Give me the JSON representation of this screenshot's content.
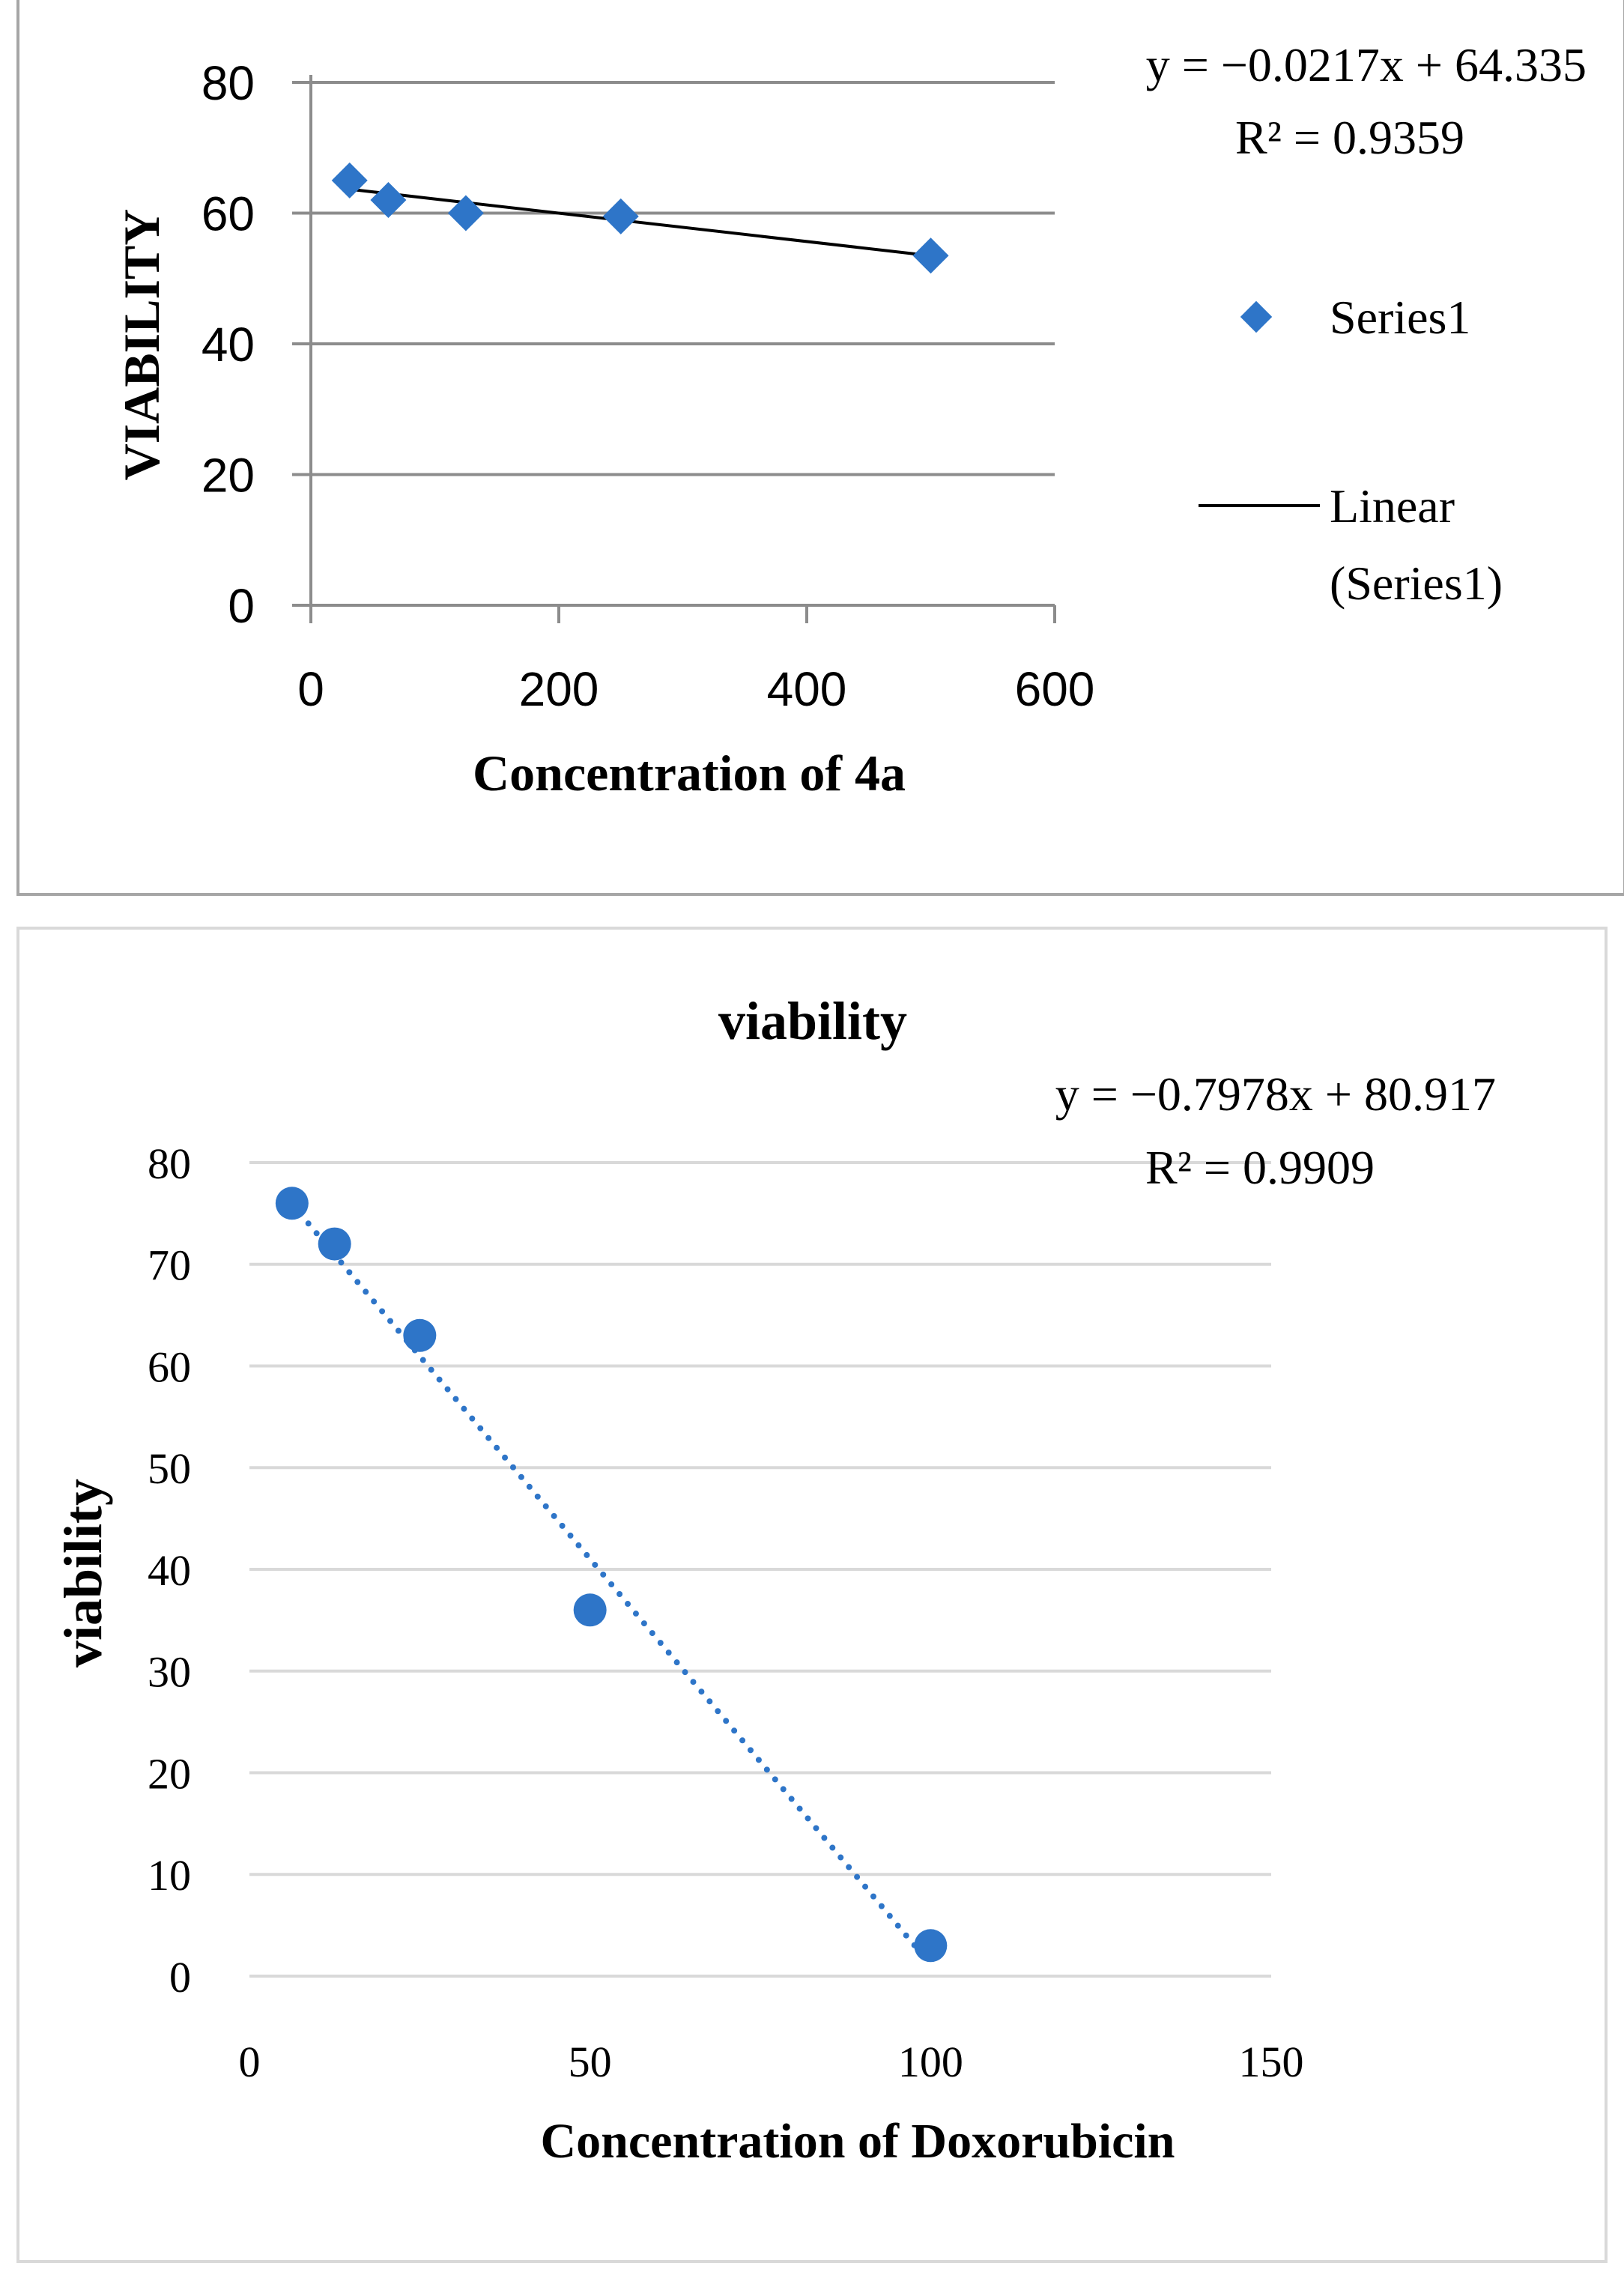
{
  "chart_data": [
    {
      "type": "scatter",
      "title": "",
      "xlabel": "Concentration of 4a",
      "ylabel": "VIABILITY",
      "xlim": [
        0,
        600
      ],
      "ylim": [
        0,
        80
      ],
      "xticks": [
        "0",
        "200",
        "400",
        "600"
      ],
      "yticks": [
        "0",
        "20",
        "40",
        "60",
        "80"
      ],
      "grid": true,
      "legend": "right",
      "series": [
        {
          "name": "Series1",
          "marker": "diamond",
          "color": "#2E75C8",
          "x": [
            31.25,
            62.5,
            125,
            250,
            500
          ],
          "y": [
            65,
            62,
            60,
            59.5,
            53.5
          ]
        }
      ],
      "trendline": {
        "name": "Linear (Series1)",
        "style": "solid",
        "color": "#000000",
        "slope": -0.0217,
        "intercept": 64.335,
        "x_range": [
          31.25,
          500
        ]
      },
      "legend_entries": [
        "Series1",
        "Linear",
        "(Series1)"
      ],
      "equation": "y = −0.0217x + 64.335",
      "r_squared": "R² = 0.9359"
    },
    {
      "type": "scatter",
      "title": "viability",
      "xlabel": "Concentration of Doxorubicin",
      "ylabel": "viability",
      "xlim": [
        0,
        150
      ],
      "ylim": [
        0,
        80
      ],
      "xticks": [
        "0",
        "50",
        "100",
        "150"
      ],
      "yticks": [
        "0",
        "10",
        "20",
        "30",
        "40",
        "50",
        "60",
        "70",
        "80"
      ],
      "grid": true,
      "legend": "none",
      "series": [
        {
          "name": "viability",
          "marker": "circle",
          "color": "#2E75C8",
          "x": [
            6.25,
            12.5,
            25,
            50,
            100
          ],
          "y": [
            76,
            72,
            63,
            36,
            3
          ]
        }
      ],
      "trendline": {
        "style": "dotted",
        "color": "#2E75C8",
        "slope": -0.7978,
        "intercept": 80.917,
        "x_range": [
          6.25,
          100
        ]
      },
      "equation": "y = −0.7978x + 80.917",
      "r_squared": "R² = 0.9909"
    }
  ]
}
